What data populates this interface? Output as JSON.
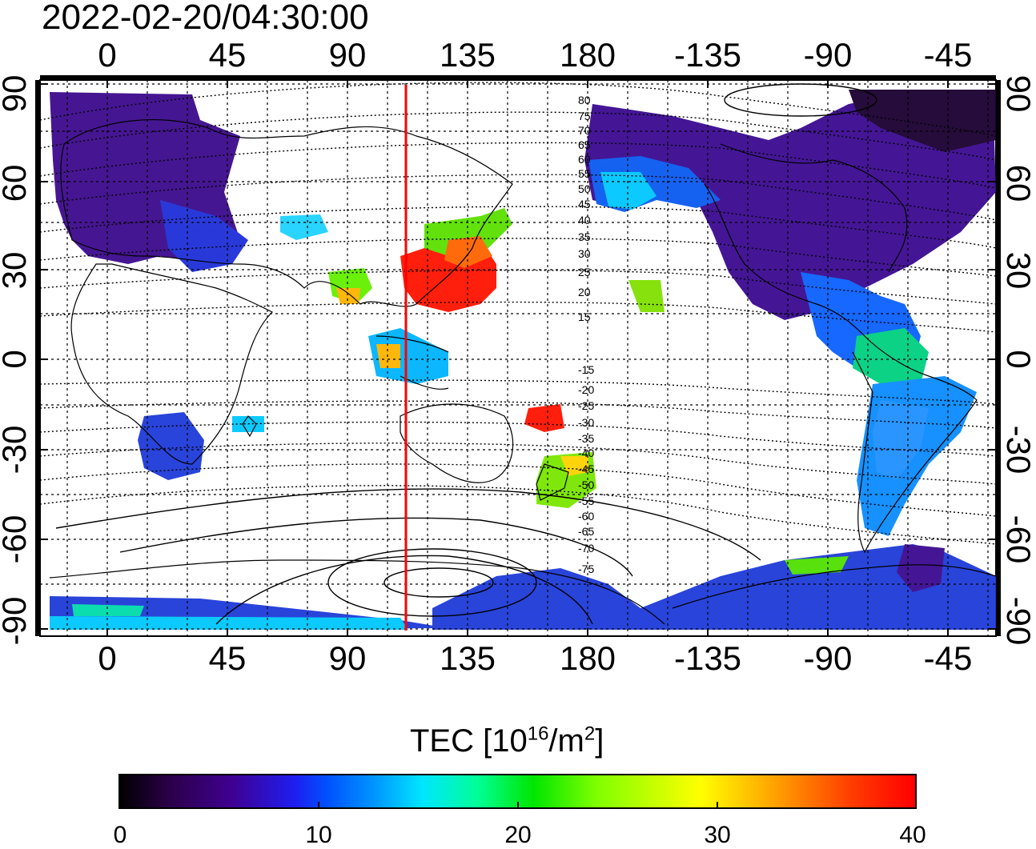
{
  "title": "2022-02-20/04:30:00",
  "lon_ticks_top": [
    "0",
    "45",
    "90",
    "135",
    "180",
    "-135",
    "-90",
    "-45"
  ],
  "lon_ticks_bottom": [
    "0",
    "45",
    "90",
    "135",
    "180",
    "-135",
    "-90",
    "-45"
  ],
  "lat_ticks_left": [
    "90",
    "60",
    "30",
    "0",
    "-30",
    "-60",
    "-90"
  ],
  "lat_ticks_right": [
    "90",
    "60",
    "30",
    "0",
    "-30",
    "-60",
    "-90"
  ],
  "contour_labels": [
    "80",
    "75",
    "70",
    "65",
    "60",
    "55",
    "50",
    "45",
    "40",
    "35",
    "30",
    "25",
    "20",
    "15",
    "-15",
    "-20",
    "-25",
    "-30",
    "-35",
    "-40",
    "-45",
    "-50",
    "-55",
    "-60",
    "-65",
    "-70",
    "-75"
  ],
  "colorbar": {
    "label_prefix": "TEC [10",
    "label_exp1": "16",
    "label_mid": "/m",
    "label_exp2": "2",
    "label_suffix": "]",
    "ticks": [
      "0",
      "10",
      "20",
      "30",
      "40"
    ],
    "min": 0,
    "max": 40
  },
  "terminator_longitude": 112,
  "colors": {
    "terminator": "#ff0000",
    "low": "#3f0090",
    "high": "#ff0000"
  }
}
